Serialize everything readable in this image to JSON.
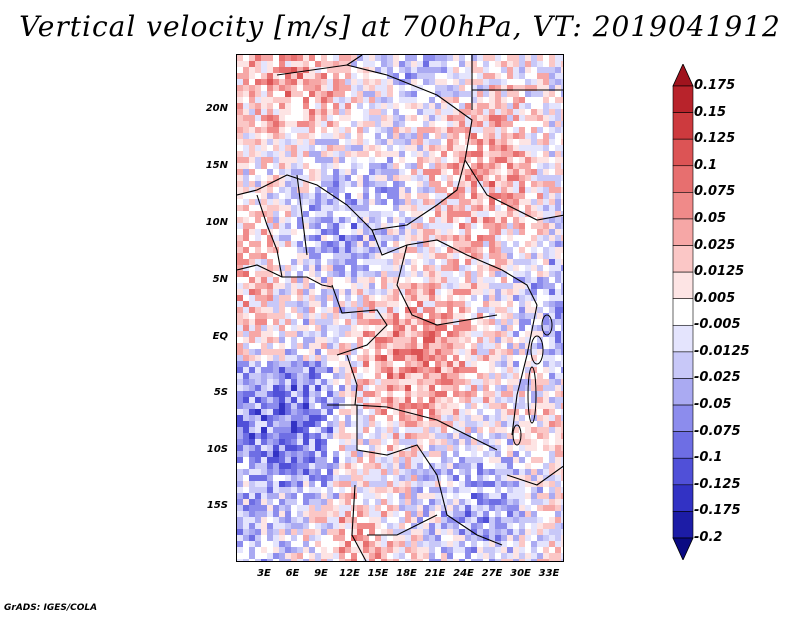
{
  "title": "Vertical velocity [m/s] at 700hPa, VT: 2019041912",
  "footer": "GrADS: IGES/COLA",
  "map": {
    "lat_ticks": [
      "20N",
      "15N",
      "10N",
      "5N",
      "EQ",
      "5S",
      "10S",
      "15S"
    ],
    "lon_ticks": [
      "3E",
      "6E",
      "9E",
      "12E",
      "15E",
      "18E",
      "21E",
      "24E",
      "27E",
      "30E",
      "33E"
    ]
  },
  "colorbar": {
    "levels": [
      "0.175",
      "0.15",
      "0.125",
      "0.1",
      "0.075",
      "0.05",
      "0.025",
      "0.0125",
      "0.005",
      "-0.005",
      "-0.0125",
      "-0.025",
      "-0.05",
      "-0.075",
      "-0.1",
      "-0.125",
      "-0.175",
      "-0.2"
    ],
    "colors": [
      "#a0141e",
      "#b8232b",
      "#cd3a3e",
      "#dc5455",
      "#e76f6f",
      "#f08a89",
      "#f6a7a6",
      "#fbc7c6",
      "#fde4e4",
      "#ffffff",
      "#e4e4fd",
      "#c8c8f8",
      "#aaaaf2",
      "#8c8ced",
      "#6e6ee4",
      "#5050d8",
      "#3232c4",
      "#1c1ca6",
      "#0a0a82"
    ]
  }
}
